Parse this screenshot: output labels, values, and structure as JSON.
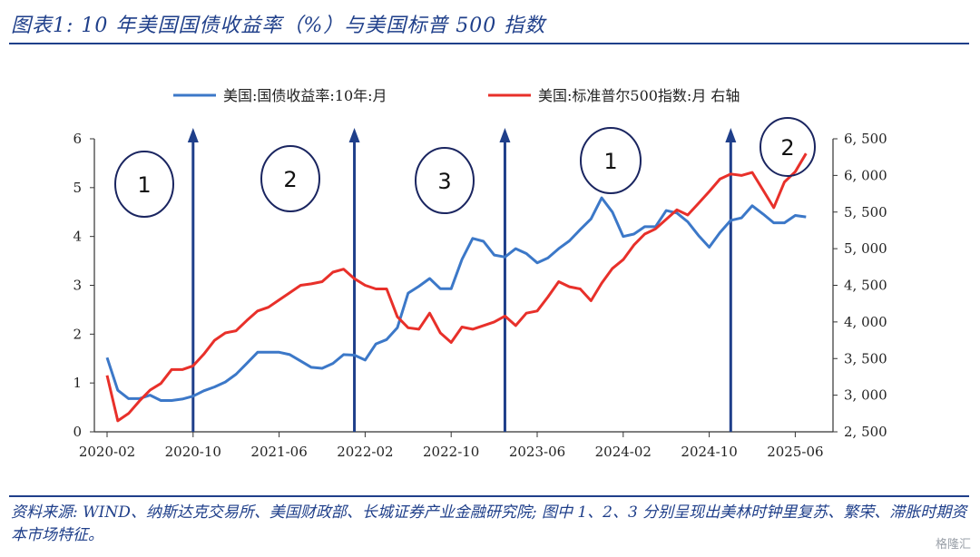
{
  "title": "图表1:  10 年美国国债收益率（%）与美国标普 500 指数",
  "source": "资料来源:  WIND、纳斯达克交易所、美国财政部、长城证券产业金融研究院;  图中 1、2、3 分别呈现出美林时钟里复苏、繁荣、滞胀时期资本市场特征。",
  "watermark": "格隆汇",
  "colors": {
    "yield": "#3c78c8",
    "spx": "#e8302a",
    "arrow": "#1f3f8a",
    "title": "#1f3f8a"
  },
  "chart_data": {
    "type": "line",
    "legend": {
      "placement": "top",
      "entries": [
        "美国:国债收益率:10年:月",
        "美国:标准普尔500指数:月 右轴"
      ]
    },
    "x_ticks": [
      "2020-02",
      "2020-10",
      "2021-06",
      "2022-02",
      "2022-10",
      "2023-06",
      "2024-02",
      "2024-10",
      "2025-06"
    ],
    "y_left": {
      "range": [
        0,
        6
      ],
      "ticks": [
        "0",
        "1",
        "2",
        "3",
        "4",
        "5",
        "6"
      ]
    },
    "y_right": {
      "range": [
        2500,
        6500
      ],
      "ticks": [
        "2, 500",
        "3, 000",
        "3, 500",
        "4, 000",
        "4, 500",
        "5, 000",
        "5, 500",
        "6, 000",
        "6, 500"
      ]
    },
    "x": [
      "2020-02",
      "2020-03",
      "2020-04",
      "2020-05",
      "2020-06",
      "2020-07",
      "2020-08",
      "2020-09",
      "2020-10",
      "2020-11",
      "2020-12",
      "2021-01",
      "2021-02",
      "2021-03",
      "2021-04",
      "2021-05",
      "2021-06",
      "2021-07",
      "2021-08",
      "2021-09",
      "2021-10",
      "2021-11",
      "2021-12",
      "2022-01",
      "2022-02",
      "2022-03",
      "2022-04",
      "2022-05",
      "2022-06",
      "2022-07",
      "2022-08",
      "2022-09",
      "2022-10",
      "2022-11",
      "2022-12",
      "2023-01",
      "2023-02",
      "2023-03",
      "2023-04",
      "2023-05",
      "2023-06",
      "2023-07",
      "2023-08",
      "2023-09",
      "2023-10",
      "2023-11",
      "2023-12",
      "2024-01",
      "2024-02",
      "2024-03",
      "2024-04",
      "2024-05",
      "2024-06",
      "2024-07",
      "2024-08",
      "2024-09",
      "2024-10",
      "2024-11",
      "2024-12",
      "2025-01",
      "2025-02",
      "2025-03",
      "2025-04",
      "2025-05",
      "2025-06",
      "2025-07"
    ],
    "series": [
      {
        "name": "美国:国债收益率:10年:月",
        "axis": "left",
        "values": [
          1.52,
          0.85,
          0.68,
          0.68,
          0.75,
          0.64,
          0.64,
          0.67,
          0.73,
          0.84,
          0.92,
          1.02,
          1.18,
          1.4,
          1.63,
          1.63,
          1.63,
          1.58,
          1.45,
          1.32,
          1.3,
          1.4,
          1.58,
          1.57,
          1.47,
          1.8,
          1.89,
          2.13,
          2.84,
          2.98,
          3.14,
          2.93,
          2.93,
          3.53,
          3.96,
          3.9,
          3.62,
          3.58,
          3.75,
          3.65,
          3.46,
          3.56,
          3.75,
          3.91,
          4.14,
          4.36,
          4.79,
          4.5,
          4.0,
          4.05,
          4.2,
          4.2,
          4.53,
          4.48,
          4.3,
          4.02,
          3.78,
          4.08,
          4.33,
          4.38,
          4.63,
          4.46,
          4.28,
          4.28,
          4.43,
          4.4
        ]
      },
      {
        "name": "美国:标准普尔500指数:月 右轴",
        "axis": "right",
        "values": [
          3270,
          2650,
          2750,
          2920,
          3070,
          3160,
          3350,
          3350,
          3400,
          3560,
          3750,
          3850,
          3880,
          4020,
          4150,
          4200,
          4300,
          4400,
          4500,
          4520,
          4550,
          4680,
          4720,
          4590,
          4500,
          4450,
          4450,
          4070,
          3920,
          3900,
          4120,
          3850,
          3720,
          3930,
          3900,
          3950,
          4000,
          4080,
          3950,
          4120,
          4150,
          4340,
          4550,
          4480,
          4450,
          4290,
          4530,
          4730,
          4850,
          5050,
          5200,
          5270,
          5400,
          5530,
          5460,
          5620,
          5780,
          5950,
          6020,
          6000,
          6040,
          5800,
          5560,
          5910,
          6050,
          6300
        ]
      }
    ],
    "phase_labels": [
      "1",
      "2",
      "3",
      "1",
      "2"
    ],
    "arrows_at": [
      "2020-10",
      "2022-01",
      "2023-03",
      "2024-12"
    ]
  }
}
